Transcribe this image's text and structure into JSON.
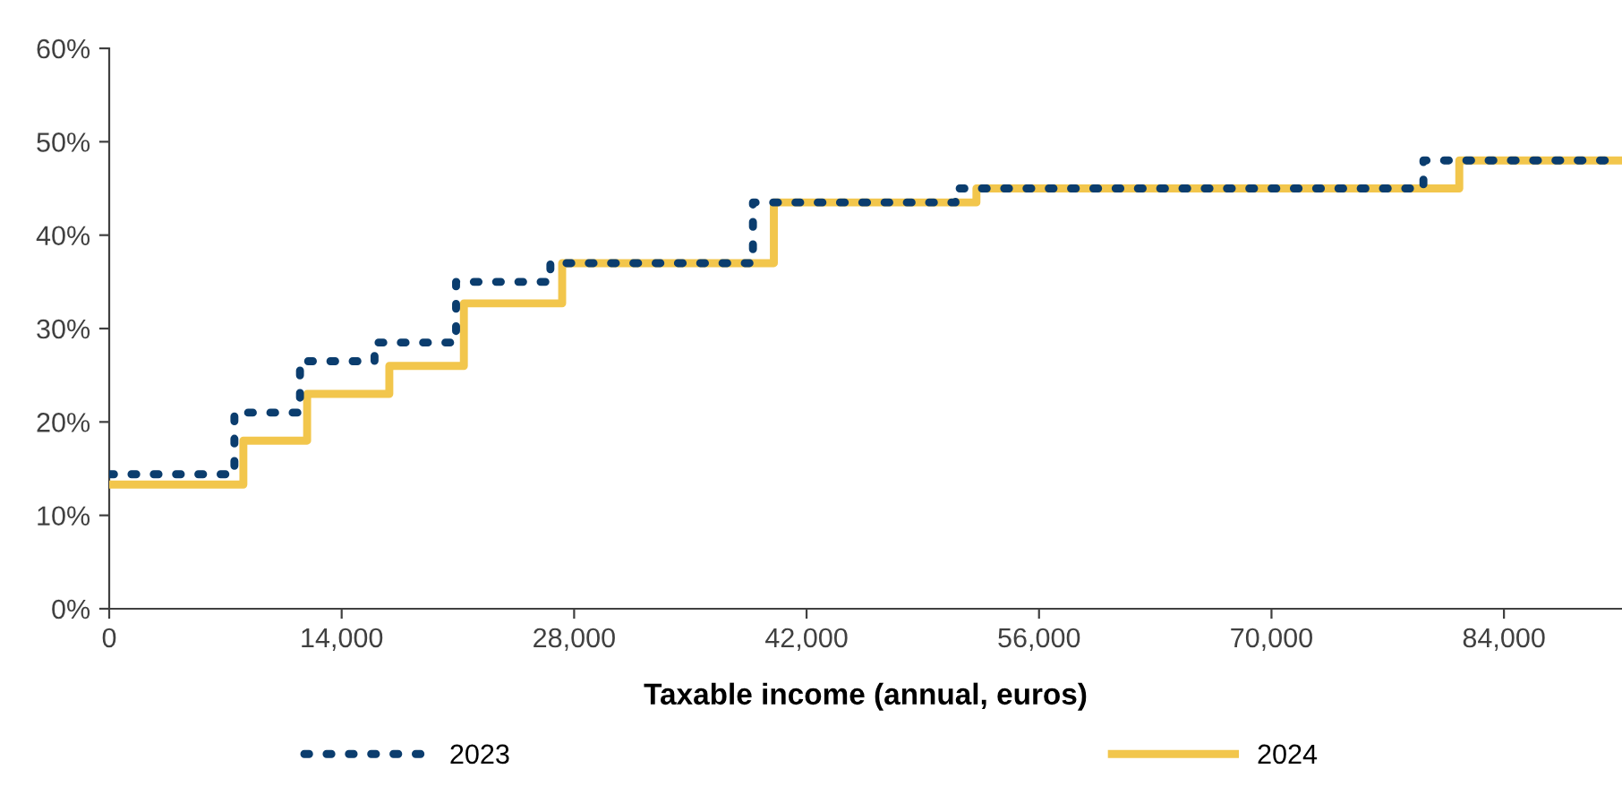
{
  "chart_data": {
    "type": "step",
    "xlabel": "Taxable income (annual, euros)",
    "xlim": [
      0,
      91110
    ],
    "xticks": [
      0,
      {
        "value": 14000,
        "label": "14,000"
      },
      {
        "value": 28000,
        "label": "28,000"
      },
      {
        "value": 42000,
        "label": "42,000"
      },
      {
        "value": 56000,
        "label": "56,000"
      },
      {
        "value": 70000,
        "label": "70,000"
      },
      {
        "value": 84000,
        "label": "84,000"
      }
    ],
    "ylim": [
      0,
      60
    ],
    "yticks": [
      {
        "value": 0,
        "label": "0%"
      },
      {
        "value": 10,
        "label": "10%"
      },
      {
        "value": 20,
        "label": "20%"
      },
      {
        "value": 30,
        "label": "30%"
      },
      {
        "value": 40,
        "label": "40%"
      },
      {
        "value": 50,
        "label": "50%"
      },
      {
        "value": 60,
        "label": "60%"
      }
    ],
    "grid": false,
    "legend": "bottom",
    "series": [
      {
        "name": "2023",
        "color": "#0b3d6e",
        "line_style": "dotted",
        "x": [
          0,
          7540,
          11490,
          15980,
          20890,
          26570,
          38770,
          50970,
          79150,
          91110
        ],
        "values": [
          14.4,
          21,
          26.5,
          28.5,
          35,
          37,
          43.5,
          45,
          48,
          48
        ]
      },
      {
        "name": "2024",
        "color": "#f2c64c",
        "line_style": "solid",
        "x": [
          0,
          8080,
          11920,
          16870,
          21360,
          27280,
          40030,
          52230,
          81310,
          91110
        ],
        "values": [
          13.3,
          18,
          23,
          26,
          32.7,
          37,
          43.5,
          45,
          48,
          48
        ]
      }
    ]
  }
}
